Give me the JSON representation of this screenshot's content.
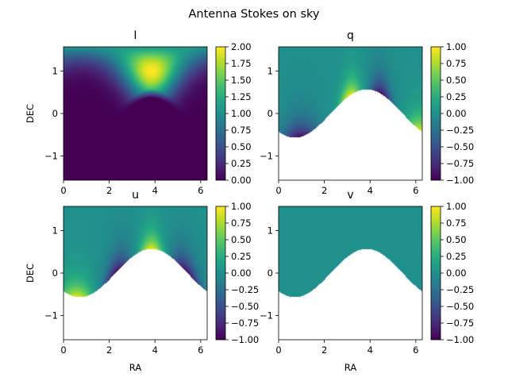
{
  "figure": {
    "title": "Antenna Stokes on sky"
  },
  "colormap": "viridis",
  "chart_data": [
    {
      "type": "heatmap",
      "title": "I",
      "xlabel": "",
      "ylabel": "DEC",
      "xlim": [
        0,
        6.283
      ],
      "ylim": [
        -1.571,
        1.571
      ],
      "xticks": [
        "0",
        "2",
        "4",
        "6"
      ],
      "yticks": [
        "1",
        "0",
        "−1"
      ],
      "colorbar": {
        "range": [
          0,
          2
        ],
        "ticks": [
          "2.00",
          "1.75",
          "1.50",
          "1.25",
          "1.00",
          "0.75",
          "0.50",
          "0.25",
          "0.00"
        ]
      },
      "features": {
        "peak_value": 2.0,
        "peak_ra": 3.85,
        "peak_dec": 1.0,
        "background_value": 0.0
      }
    },
    {
      "type": "heatmap",
      "title": "q",
      "xlabel": "",
      "ylabel": "",
      "xlim": [
        0,
        6.283
      ],
      "ylim": [
        -1.571,
        1.571
      ],
      "xticks": [
        "0",
        "2",
        "4",
        "6"
      ],
      "yticks": [
        "1",
        "0",
        "−1"
      ],
      "colorbar": {
        "range": [
          -1,
          1
        ],
        "ticks": [
          "1.00",
          "0.75",
          "0.50",
          "0.25",
          "0.00",
          "−0.25",
          "−0.50",
          "−0.75",
          "−1.00"
        ]
      },
      "features": {
        "masked_below_horizon": true,
        "horizon_min_dec": -0.57,
        "horizon_min_ra": 3.85,
        "horizon_max_dec": 0.57
      }
    },
    {
      "type": "heatmap",
      "title": "u",
      "xlabel": "RA",
      "ylabel": "DEC",
      "xlim": [
        0,
        6.283
      ],
      "ylim": [
        -1.571,
        1.571
      ],
      "xticks": [
        "0",
        "2",
        "4",
        "6"
      ],
      "yticks": [
        "1",
        "0",
        "−1"
      ],
      "colorbar": {
        "range": [
          -1,
          1
        ],
        "ticks": [
          "1.00",
          "0.75",
          "0.50",
          "0.25",
          "0.00",
          "−0.25",
          "−0.50",
          "−0.75",
          "−1.00"
        ]
      },
      "features": {
        "masked_below_horizon": true,
        "horizon_min_dec": -0.57,
        "horizon_min_ra": 3.85,
        "horizon_max_dec": 0.57
      }
    },
    {
      "type": "heatmap",
      "title": "v",
      "xlabel": "RA",
      "ylabel": "",
      "xlim": [
        0,
        6.283
      ],
      "ylim": [
        -1.571,
        1.571
      ],
      "xticks": [
        "0",
        "2",
        "4",
        "6"
      ],
      "yticks": [
        "1",
        "0",
        "−1"
      ],
      "colorbar": {
        "range": [
          -1,
          1
        ],
        "ticks": [
          "1.00",
          "0.75",
          "0.50",
          "0.25",
          "0.00",
          "−0.25",
          "−0.50",
          "−0.75",
          "−1.00"
        ]
      },
      "features": {
        "masked_below_horizon": true,
        "constant_value": 0.0
      }
    }
  ]
}
